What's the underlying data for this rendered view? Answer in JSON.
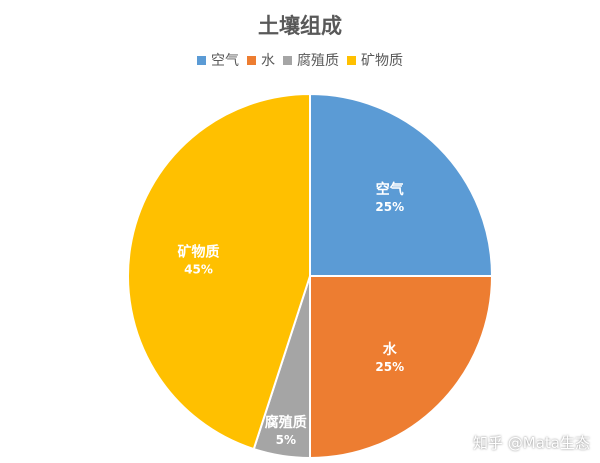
{
  "chart_data": {
    "type": "pie",
    "title": "土壤组成",
    "legend_position": "top",
    "categories": [
      "空气",
      "水",
      "腐殖质",
      "矿物质"
    ],
    "values": [
      25,
      25,
      5,
      45
    ],
    "labels": [
      "25%",
      "25%",
      "5%",
      "45%"
    ],
    "colors": [
      "#5B9BD5",
      "#ED7D31",
      "#A5A5A5",
      "#FFC000"
    ]
  },
  "watermark": "知乎 @Mata生态"
}
